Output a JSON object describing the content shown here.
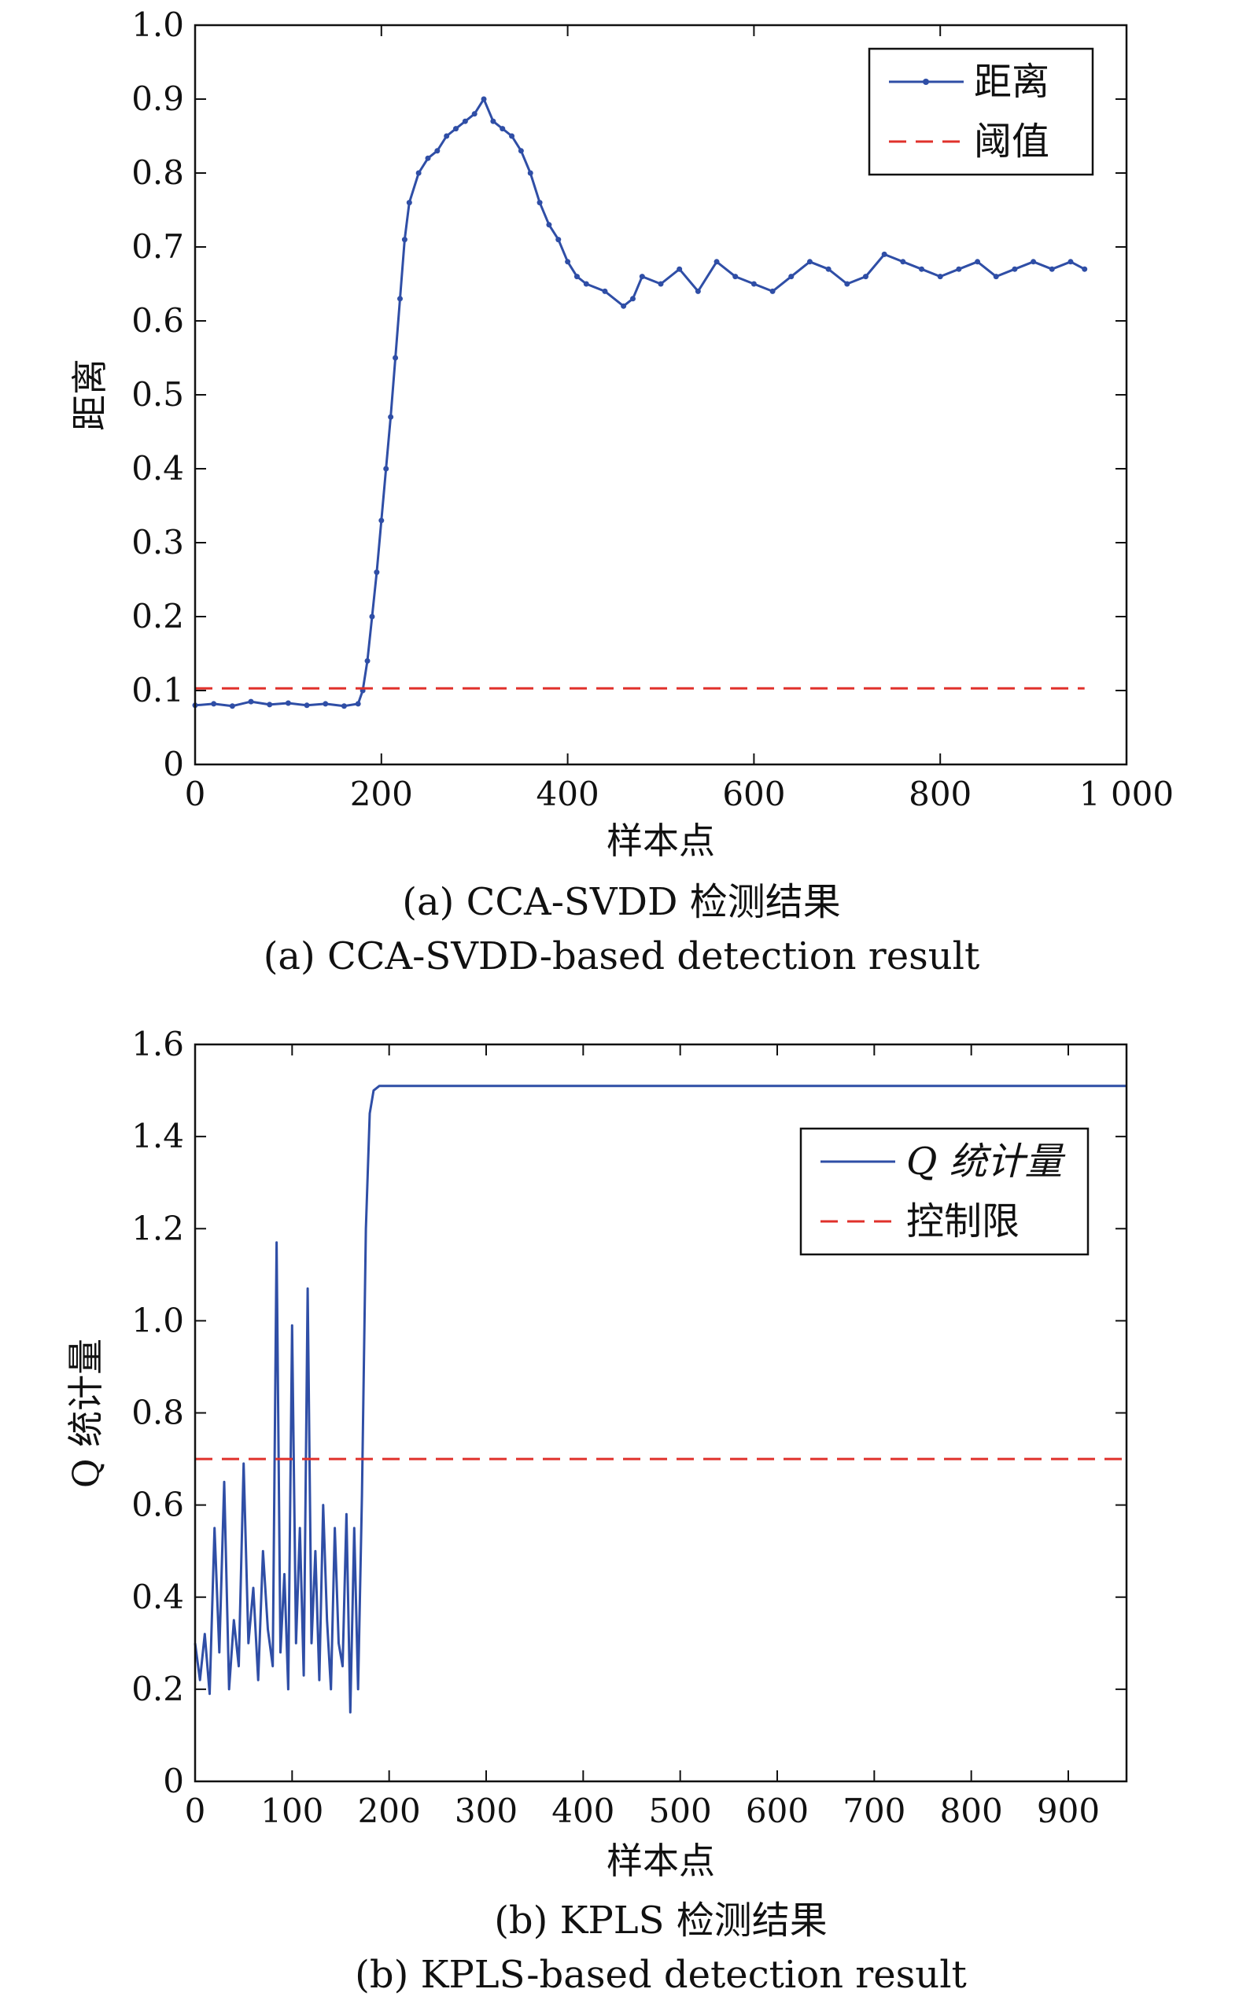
{
  "colors": {
    "series": "#2f4ea6",
    "threshold": "#e0312b",
    "axis": "#111111"
  },
  "chart_data": [
    {
      "type": "line",
      "caption_cn": "(a) CCA-SVDD 检测结果",
      "caption_en": "(a) CCA-SVDD-based detection result",
      "xlabel": "样本点",
      "ylabel": "距离",
      "xlim": [
        0,
        1000
      ],
      "ylim": [
        0,
        1.0
      ],
      "xticks": [
        0,
        200,
        400,
        600,
        800,
        1000
      ],
      "xtick_labels": [
        "0",
        "200",
        "400",
        "600",
        "800",
        "1 000"
      ],
      "yticks": [
        0,
        0.1,
        0.2,
        0.3,
        0.4,
        0.5,
        0.6,
        0.7,
        0.8,
        0.9,
        1.0
      ],
      "ytick_labels": [
        "0",
        "0.1",
        "0.2",
        "0.3",
        "0.4",
        "0.5",
        "0.6",
        "0.7",
        "0.8",
        "0.9",
        "1.0"
      ],
      "legend": {
        "position": "top-right",
        "entries": [
          "距离",
          "阈值"
        ]
      },
      "series": [
        {
          "name": "距离",
          "style": "solid-with-dots",
          "x": [
            0,
            20,
            40,
            60,
            80,
            100,
            120,
            140,
            160,
            175,
            180,
            185,
            190,
            195,
            200,
            205,
            210,
            215,
            220,
            225,
            230,
            240,
            250,
            260,
            270,
            280,
            290,
            300,
            310,
            320,
            330,
            340,
            350,
            360,
            370,
            380,
            390,
            400,
            410,
            420,
            440,
            460,
            470,
            480,
            500,
            520,
            540,
            560,
            580,
            600,
            620,
            640,
            660,
            680,
            700,
            720,
            740,
            760,
            780,
            800,
            820,
            840,
            860,
            880,
            900,
            920,
            940,
            955
          ],
          "y": [
            0.08,
            0.082,
            0.079,
            0.085,
            0.081,
            0.083,
            0.08,
            0.082,
            0.079,
            0.082,
            0.1,
            0.14,
            0.2,
            0.26,
            0.33,
            0.4,
            0.47,
            0.55,
            0.63,
            0.71,
            0.76,
            0.8,
            0.82,
            0.83,
            0.85,
            0.86,
            0.87,
            0.88,
            0.9,
            0.87,
            0.86,
            0.85,
            0.83,
            0.8,
            0.76,
            0.73,
            0.71,
            0.68,
            0.66,
            0.65,
            0.64,
            0.62,
            0.63,
            0.66,
            0.65,
            0.67,
            0.64,
            0.68,
            0.66,
            0.65,
            0.64,
            0.66,
            0.68,
            0.67,
            0.65,
            0.66,
            0.69,
            0.68,
            0.67,
            0.66,
            0.67,
            0.68,
            0.66,
            0.67,
            0.68,
            0.67,
            0.68,
            0.67
          ]
        },
        {
          "name": "阈值",
          "style": "dashed",
          "x": [
            0,
            955
          ],
          "y": [
            0.103,
            0.103
          ]
        }
      ]
    },
    {
      "type": "line",
      "caption_cn": "(b) KPLS 检测结果",
      "caption_en": "(b) KPLS-based detection result",
      "xlabel": "样本点",
      "ylabel": "Q 统计量",
      "xlim": [
        0,
        960
      ],
      "ylim": [
        0,
        1.6
      ],
      "xticks": [
        0,
        100,
        200,
        300,
        400,
        500,
        600,
        700,
        800,
        900
      ],
      "xtick_labels": [
        "0",
        "100",
        "200",
        "300",
        "400",
        "500",
        "600",
        "700",
        "800",
        "900"
      ],
      "yticks": [
        0,
        0.2,
        0.4,
        0.6,
        0.8,
        1.0,
        1.2,
        1.4,
        1.6
      ],
      "ytick_labels": [
        "0",
        "0.2",
        "0.4",
        "0.6",
        "0.8",
        "1.0",
        "1.2",
        "1.4",
        "1.6"
      ],
      "legend": {
        "position": "upper-right",
        "entries": [
          "Q 统计量",
          "控制限"
        ]
      },
      "series": [
        {
          "name": "Q 统计量",
          "style": "solid",
          "x": [
            0,
            5,
            10,
            15,
            20,
            25,
            30,
            35,
            40,
            45,
            50,
            55,
            60,
            65,
            70,
            75,
            80,
            84,
            88,
            92,
            96,
            100,
            104,
            108,
            112,
            116,
            120,
            124,
            128,
            132,
            136,
            140,
            144,
            148,
            152,
            156,
            160,
            164,
            168,
            172,
            176,
            180,
            184,
            190,
            200,
            300,
            400,
            500,
            600,
            700,
            800,
            900,
            960
          ],
          "y": [
            0.3,
            0.22,
            0.32,
            0.19,
            0.55,
            0.28,
            0.65,
            0.2,
            0.35,
            0.25,
            0.69,
            0.3,
            0.42,
            0.22,
            0.5,
            0.33,
            0.25,
            1.17,
            0.28,
            0.45,
            0.2,
            0.99,
            0.3,
            0.55,
            0.23,
            1.07,
            0.3,
            0.5,
            0.22,
            0.6,
            0.35,
            0.2,
            0.55,
            0.3,
            0.25,
            0.58,
            0.15,
            0.55,
            0.2,
            0.62,
            1.2,
            1.45,
            1.5,
            1.51,
            1.51,
            1.51,
            1.51,
            1.51,
            1.51,
            1.51,
            1.51,
            1.51,
            1.51
          ]
        },
        {
          "name": "控制限",
          "style": "dashed",
          "x": [
            0,
            960
          ],
          "y": [
            0.7,
            0.7
          ]
        }
      ]
    }
  ]
}
